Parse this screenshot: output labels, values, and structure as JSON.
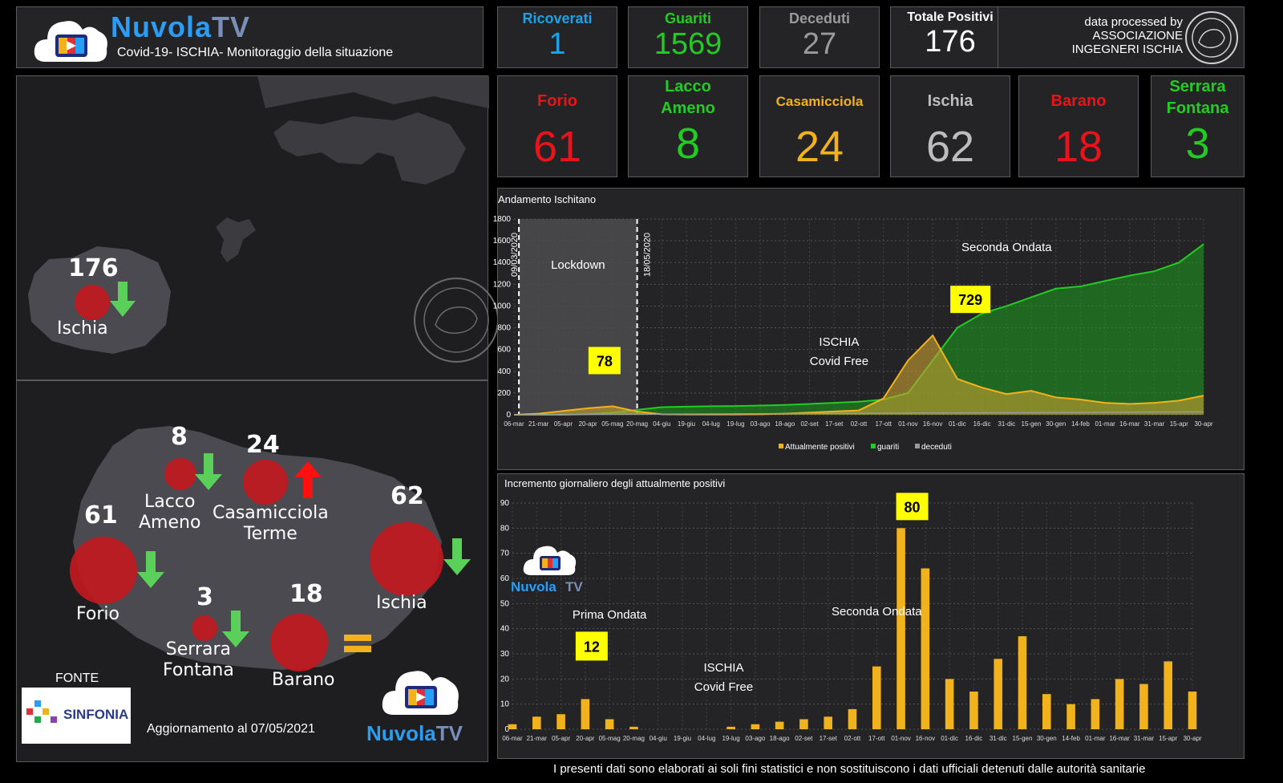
{
  "header": {
    "logo_a": "Nuvola",
    "logo_b": "TV",
    "subtitle": "Covid-19- ISCHIA- Monitoraggio della situazione"
  },
  "stats": [
    {
      "label": "Ricoverati",
      "value": "1",
      "color": "#1aa3e8"
    },
    {
      "label": "Guariti",
      "value": "1569",
      "color": "#22cc22"
    },
    {
      "label": "Deceduti",
      "value": "27",
      "color": "#9a9a9a"
    },
    {
      "label": "Totale Positivi",
      "value": "176",
      "color": "#ffffff"
    }
  ],
  "credit": {
    "line1": "data processed by",
    "line2": "ASSOCIAZIONE",
    "line3": "INGEGNERI ISCHIA"
  },
  "towns": [
    {
      "label": "Forio",
      "value": "61",
      "color": "#e8141a"
    },
    {
      "label": "Lacco Ameno",
      "value": "8",
      "color": "#22cc22"
    },
    {
      "label": "Casamicciola",
      "value": "24",
      "color": "#f2b21c"
    },
    {
      "label": "Ischia",
      "value": "62",
      "color": "#bdbdbd"
    },
    {
      "label": "Barano",
      "value": "18",
      "color": "#e8141a"
    },
    {
      "label": "Serrara Fontana",
      "value": "3",
      "color": "#22cc22"
    }
  ],
  "island_map": {
    "value": "176",
    "label": "Ischia"
  },
  "detail_map": {
    "towns": [
      {
        "name": "Lacco Ameno",
        "num": "8",
        "trend": "down"
      },
      {
        "name": "Casamicciola Terme",
        "num": "24",
        "trend": "up"
      },
      {
        "name": "Forio",
        "num": "61",
        "trend": "down"
      },
      {
        "name": "Ischia",
        "num": "62",
        "trend": "down"
      },
      {
        "name": "Serrara Fontana",
        "num": "3",
        "trend": "down"
      },
      {
        "name": "Barano",
        "num": "18",
        "trend": "equal"
      }
    ],
    "fonte": "FONTE",
    "sinfonia": "SINFONIA",
    "update": "Aggiornamento al 07/05/2021"
  },
  "footer_note": "I presenti dati sono elaborati ai soli fini statistici e non sostituiscono i dati ufficiali detenuti dalle autorità sanitarie",
  "chart_data": [
    {
      "type": "area",
      "title": "Andamento Ischitano",
      "ylim": [
        0,
        1800
      ],
      "yticks": [
        0,
        200,
        400,
        600,
        800,
        1000,
        1200,
        1400,
        1600,
        1800
      ],
      "x_tick_labels": [
        "06-mar",
        "21-mar",
        "05-apr",
        "20-apr",
        "05-mag",
        "20-mag",
        "04-giu",
        "19-giu",
        "04-lug",
        "19-lug",
        "03-ago",
        "18-ago",
        "02-set",
        "17-set",
        "02-ott",
        "17-ott",
        "01-nov",
        "16-nov",
        "01-dic",
        "16-dic",
        "31-dic",
        "15-gen",
        "30-gen",
        "14-feb",
        "01-mar",
        "16-mar",
        "31-mar",
        "15-apr",
        "30-apr"
      ],
      "legend": [
        "Attualmente positivi",
        "guariti",
        "deceduti"
      ],
      "series": [
        {
          "name": "Attualmente positivi",
          "color": "#f2b21c",
          "x": [
            "06-mar",
            "21-mar",
            "05-apr",
            "20-apr",
            "05-mag",
            "20-mag",
            "04-giu",
            "19-giu",
            "04-lug",
            "19-lug",
            "03-ago",
            "18-ago",
            "02-set",
            "17-set",
            "02-ott",
            "17-ott",
            "01-nov",
            "16-nov",
            "01-dic",
            "16-dic",
            "31-dic",
            "15-gen",
            "30-gen",
            "14-feb",
            "01-mar",
            "16-mar",
            "31-mar",
            "15-apr",
            "30-apr"
          ],
          "values": [
            0,
            10,
            35,
            60,
            78,
            30,
            5,
            3,
            3,
            3,
            5,
            10,
            20,
            30,
            40,
            150,
            500,
            729,
            330,
            250,
            190,
            220,
            160,
            140,
            110,
            100,
            110,
            130,
            176
          ]
        },
        {
          "name": "guariti",
          "color": "#22cc22",
          "x": [
            "06-mar",
            "21-mar",
            "05-apr",
            "20-apr",
            "05-mag",
            "20-mag",
            "04-giu",
            "19-giu",
            "04-lug",
            "19-lug",
            "03-ago",
            "18-ago",
            "02-set",
            "17-set",
            "02-ott",
            "17-ott",
            "01-nov",
            "16-nov",
            "01-dic",
            "16-dic",
            "31-dic",
            "15-gen",
            "30-gen",
            "14-feb",
            "01-mar",
            "16-mar",
            "31-mar",
            "15-apr",
            "30-apr"
          ],
          "values": [
            0,
            0,
            0,
            5,
            20,
            45,
            70,
            75,
            78,
            80,
            85,
            90,
            100,
            110,
            120,
            140,
            200,
            500,
            800,
            930,
            1000,
            1080,
            1160,
            1180,
            1230,
            1280,
            1320,
            1400,
            1569
          ]
        },
        {
          "name": "deceduti",
          "color": "#9a9a9a",
          "x": [
            "06-mar",
            "30-apr"
          ],
          "values": [
            0,
            27
          ]
        }
      ],
      "annotations": [
        {
          "text": "Lockdown"
        },
        {
          "text": "09/03/2020"
        },
        {
          "text": "18/05/2020"
        },
        {
          "text": "Seconda Ondata"
        },
        {
          "text": "ISCHIA"
        },
        {
          "text": "Covid Free"
        },
        {
          "text": "78"
        },
        {
          "text": "729"
        }
      ]
    },
    {
      "type": "bar",
      "title": "Incremento giornaliero degli attualmente positivi",
      "ylim": [
        0,
        90
      ],
      "yticks": [
        0,
        10,
        20,
        30,
        40,
        50,
        60,
        70,
        80,
        90
      ],
      "x_tick_labels": [
        "06-mar",
        "21-mar",
        "05-apr",
        "20-apr",
        "05-mag",
        "20-mag",
        "04-giu",
        "19-giu",
        "04-lug",
        "19-lug",
        "03-ago",
        "18-ago",
        "02-set",
        "17-set",
        "02-ott",
        "17-ott",
        "01-nov",
        "16-nov",
        "01-dic",
        "16-dic",
        "31-dic",
        "15-gen",
        "30-gen",
        "14-feb",
        "01-mar",
        "16-mar",
        "31-mar",
        "15-apr",
        "30-apr"
      ],
      "series": [
        {
          "color": "#f2b21c",
          "x": [
            "06-mar",
            "21-mar",
            "05-apr",
            "20-apr",
            "05-mag",
            "20-mag",
            "04-giu",
            "19-giu",
            "04-lug",
            "19-lug",
            "03-ago",
            "18-ago",
            "02-set",
            "17-set",
            "02-ott",
            "17-ott",
            "01-nov",
            "16-nov",
            "01-dic",
            "16-dic",
            "31-dic",
            "15-gen",
            "30-gen",
            "14-feb",
            "01-mar",
            "16-mar",
            "31-mar",
            "15-apr",
            "30-apr"
          ],
          "values": [
            2,
            5,
            6,
            12,
            4,
            1,
            0,
            0,
            0,
            1,
            2,
            3,
            4,
            5,
            8,
            25,
            80,
            64,
            20,
            15,
            28,
            37,
            14,
            10,
            12,
            20,
            18,
            27,
            15
          ]
        }
      ],
      "annotations": [
        {
          "text": "Prima Ondata"
        },
        {
          "text": "Seconda Ondata"
        },
        {
          "text": "ISCHIA"
        },
        {
          "text": "Covid Free"
        },
        {
          "text": "12"
        },
        {
          "text": "80"
        }
      ]
    }
  ]
}
